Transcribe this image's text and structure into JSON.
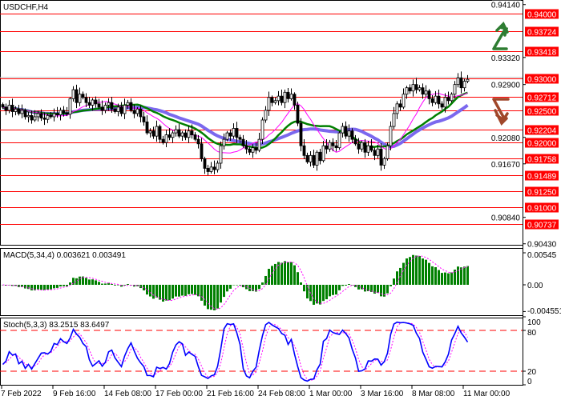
{
  "chart_data": {
    "type": "candlestick",
    "title": "USDCHF,H4",
    "symbol": "USDCHF",
    "timeframe": "H4",
    "closes": [
      0.9255,
      0.925,
      0.9258,
      0.9248,
      0.9252,
      0.9245,
      0.925,
      0.924,
      0.9242,
      0.9235,
      0.924,
      0.9245,
      0.9238,
      0.9236,
      0.9242,
      0.924,
      0.9245,
      0.9243,
      0.925,
      0.9246,
      0.9244,
      0.9268,
      0.9282,
      0.9262,
      0.9275,
      0.927,
      0.9262,
      0.9258,
      0.9266,
      0.926,
      0.9255,
      0.925,
      0.9258,
      0.9262,
      0.9252,
      0.9248,
      0.9255,
      0.9245,
      0.9258,
      0.9262,
      0.925,
      0.9245,
      0.9252,
      0.924,
      0.9232,
      0.9215,
      0.9218,
      0.921,
      0.9225,
      0.9205,
      0.92,
      0.9212,
      0.9208,
      0.9215,
      0.922,
      0.921,
      0.9215,
      0.9208,
      0.9218,
      0.9212,
      0.9205,
      0.9198,
      0.9175,
      0.916,
      0.9155,
      0.9162,
      0.9158,
      0.9168,
      0.9195,
      0.9205,
      0.9215,
      0.921,
      0.9222,
      0.9208,
      0.9205,
      0.9195,
      0.919,
      0.9185,
      0.9192,
      0.9188,
      0.9205,
      0.9235,
      0.925,
      0.927,
      0.9262,
      0.9265,
      0.9272,
      0.9262,
      0.9278,
      0.9268,
      0.9275,
      0.9258,
      0.923,
      0.9195,
      0.918,
      0.917,
      0.918,
      0.9165,
      0.9185,
      0.9172,
      0.9195,
      0.919,
      0.92,
      0.9195,
      0.9192,
      0.9215,
      0.9225,
      0.921,
      0.9218,
      0.9205,
      0.9198,
      0.919,
      0.92,
      0.9185,
      0.9195,
      0.9188,
      0.918,
      0.919,
      0.9165,
      0.9175,
      0.9195,
      0.9225,
      0.9245,
      0.926,
      0.9255,
      0.9275,
      0.9285,
      0.928,
      0.929,
      0.9282,
      0.9285,
      0.9275,
      0.928,
      0.9268,
      0.9262,
      0.9272,
      0.926,
      0.9255,
      0.927,
      0.9265,
      0.9275,
      0.929,
      0.93,
      0.9285,
      0.9295,
      0.9298
    ],
    "price_axis": {
      "range": [
        0.9043,
        0.9414
      ],
      "ticks": [
        "0.94140",
        "0.93320",
        "0.92900",
        "0.92080",
        "0.91670",
        "0.90840",
        "0.90430"
      ],
      "current_price": 0.93
    },
    "levels": [
      "0.94000",
      "0.93724",
      "0.93418",
      "0.93000",
      "0.92712",
      "0.92500",
      "0.92204",
      "0.92000",
      "0.91758",
      "0.91489",
      "0.91250",
      "0.91000",
      "0.90737"
    ],
    "level_color": "#ff0000",
    "moving_average_colors": [
      "#ff00ff",
      "#008000",
      "#7b68ee"
    ],
    "bull_color": "#ffffff",
    "bear_color": "#000000",
    "time_labels": [
      "7 Feb 2022",
      "9 Feb 16:00",
      "14 Feb 08:00",
      "17 Feb 00:00",
      "21 Feb 16:00",
      "24 Feb 08:00",
      "1 Mar 00:00",
      "3 Mar 16:00",
      "8 Mar 08:00",
      "11 Mar 00:00"
    ],
    "signals": {
      "up_arrow_color": "#2e7d32",
      "down_arrow_color": "#a0472a"
    }
  },
  "macd": {
    "label": "MACD(5,34,4) 0.003621 0.003491",
    "ticks": [
      "0.00545",
      "0.00",
      "-0.004551"
    ],
    "range": [
      -0.004551,
      0.00545
    ],
    "histogram_color": "#008000",
    "signal_color": "#ff00ff"
  },
  "stoch": {
    "label": "Stoch(5,3,3) 83.2515 83.6497",
    "ticks": [
      "100",
      "80",
      "20",
      "0"
    ],
    "levels": [
      80,
      20
    ],
    "main_color": "#0000ff",
    "signal_color": "#ff00ff"
  }
}
